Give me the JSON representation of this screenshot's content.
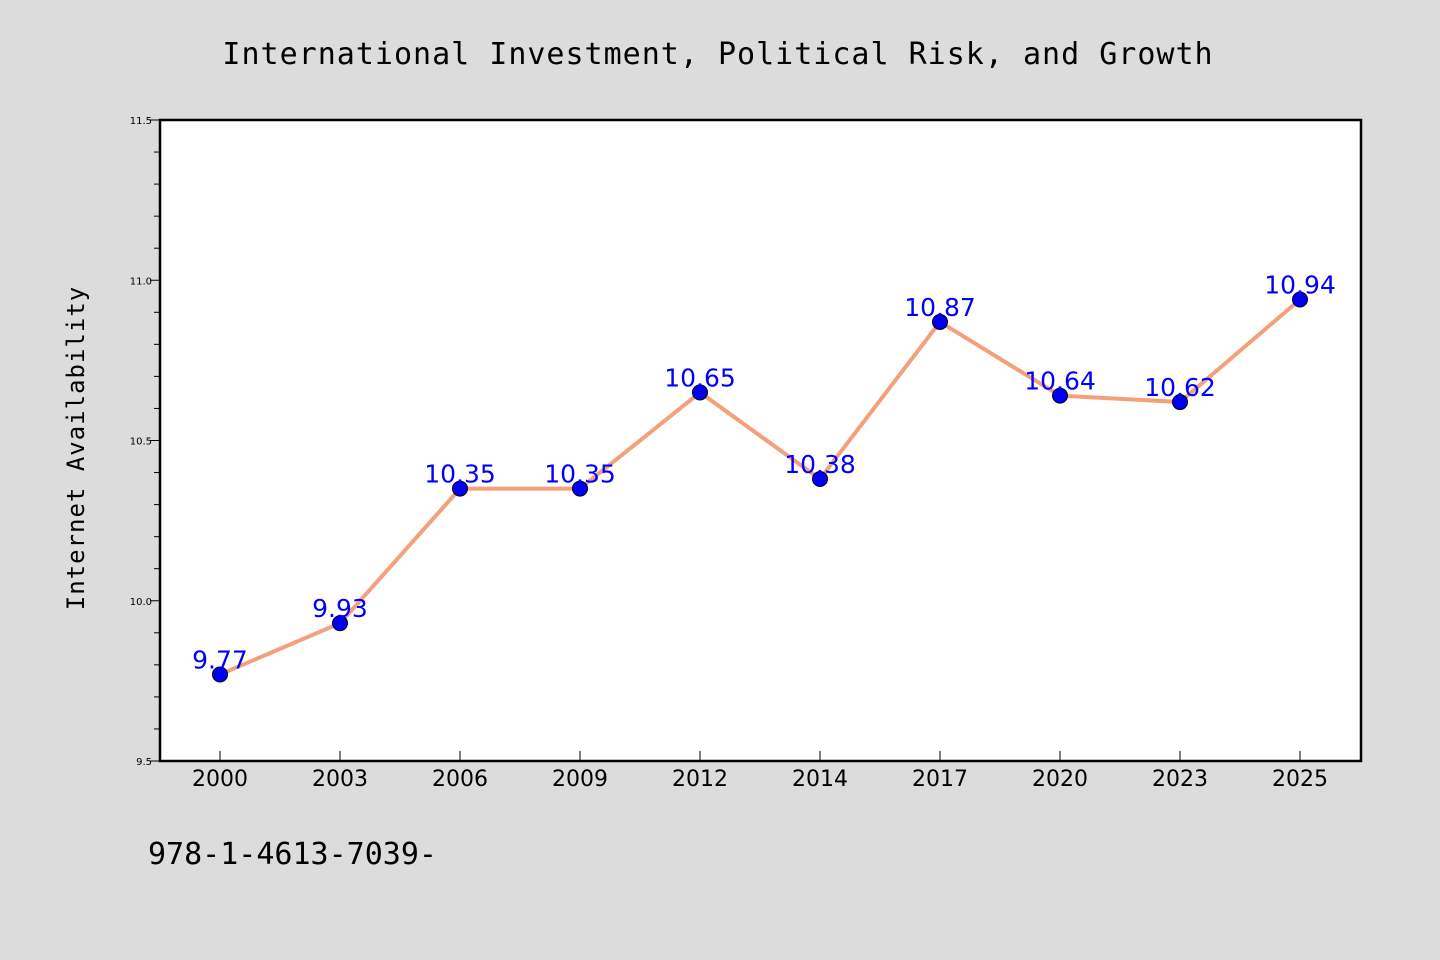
{
  "chart_data": {
    "type": "line",
    "title": "International Investment, Political Risk, and Growth",
    "xlabel": "",
    "ylabel": "Internet Availability",
    "categories": [
      "2000",
      "2003",
      "2006",
      "2009",
      "2012",
      "2014",
      "2017",
      "2020",
      "2023",
      "2025"
    ],
    "series": [
      {
        "values": [
          9.77,
          9.93,
          10.35,
          10.35,
          10.65,
          10.38,
          10.87,
          10.64,
          10.62,
          10.94
        ],
        "labels": [
          "9.77",
          "9.93",
          "10.35",
          "10.35",
          "10.65",
          "10.38",
          "10.87",
          "10.64",
          "10.62",
          "10.94"
        ],
        "line_color": "#f4a07c",
        "marker_color": "#0000ee",
        "label_color": "#0000ff"
      }
    ],
    "ylim": [
      9.5,
      11.5
    ],
    "yticks": [
      "9.5",
      "10.0",
      "10.5",
      "11.0",
      "11.5"
    ],
    "ytick_values": [
      9.5,
      10.0,
      10.5,
      11.0,
      11.5
    ],
    "grid": false,
    "legend": "none"
  },
  "footnote": "978-1-4613-7039-",
  "colors": {
    "background": "#dcdcdc",
    "plot_background": "#ffffff"
  }
}
